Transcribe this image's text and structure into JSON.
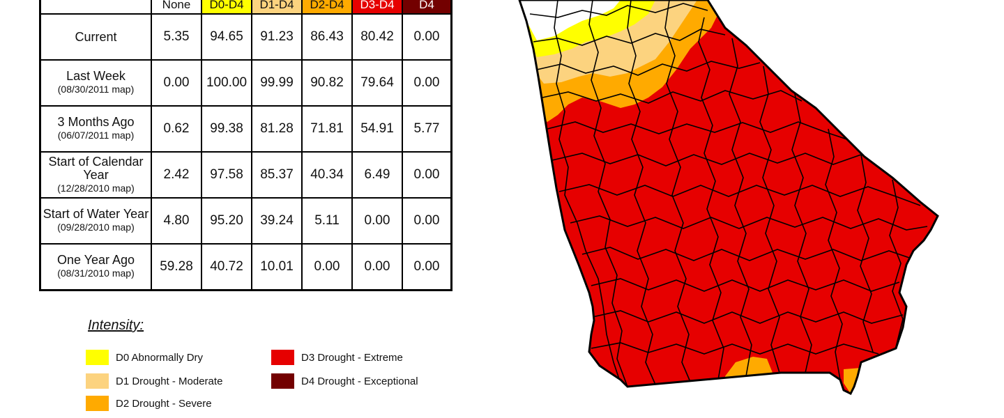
{
  "table": {
    "headers": [
      "None",
      "D0-D4",
      "D1-D4",
      "D2-D4",
      "D3-D4",
      "D4"
    ],
    "rows": [
      {
        "label": "Current",
        "sub": "",
        "values": [
          "5.35",
          "94.65",
          "91.23",
          "86.43",
          "80.42",
          "0.00"
        ]
      },
      {
        "label": "Last Week",
        "sub": "(08/30/2011 map)",
        "values": [
          "0.00",
          "100.00",
          "99.99",
          "90.82",
          "79.64",
          "0.00"
        ]
      },
      {
        "label": "3 Months Ago",
        "sub": "(06/07/2011 map)",
        "values": [
          "0.62",
          "99.38",
          "81.28",
          "71.81",
          "54.91",
          "5.77"
        ]
      },
      {
        "label": "Start of Calendar Year",
        "sub": "(12/28/2010 map)",
        "values": [
          "2.42",
          "97.58",
          "85.37",
          "40.34",
          "6.49",
          "0.00"
        ]
      },
      {
        "label": "Start of Water Year",
        "sub": "(09/28/2010 map)",
        "values": [
          "4.80",
          "95.20",
          "39.24",
          "5.11",
          "0.00",
          "0.00"
        ]
      },
      {
        "label": "One Year Ago",
        "sub": "(08/31/2010 map)",
        "values": [
          "59.28",
          "40.72",
          "10.01",
          "0.00",
          "0.00",
          "0.00"
        ]
      }
    ]
  },
  "legend": {
    "title": "Intensity:",
    "items": [
      {
        "label": "D0 Abnormally Dry",
        "color": "#ffff00"
      },
      {
        "label": "D1 Drought - Moderate",
        "color": "#fcd37f"
      },
      {
        "label": "D2 Drought - Severe",
        "color": "#ffaa00"
      },
      {
        "label": "D3 Drought - Extreme",
        "color": "#e60000"
      },
      {
        "label": "D4 Drought - Exceptional",
        "color": "#730000"
      }
    ]
  },
  "colors": {
    "none": "#ffffff",
    "d0": "#ffff00",
    "d1": "#fcd37f",
    "d2": "#ffaa00",
    "d3": "#e60000",
    "d4": "#730000",
    "county_lines": "#000000"
  }
}
